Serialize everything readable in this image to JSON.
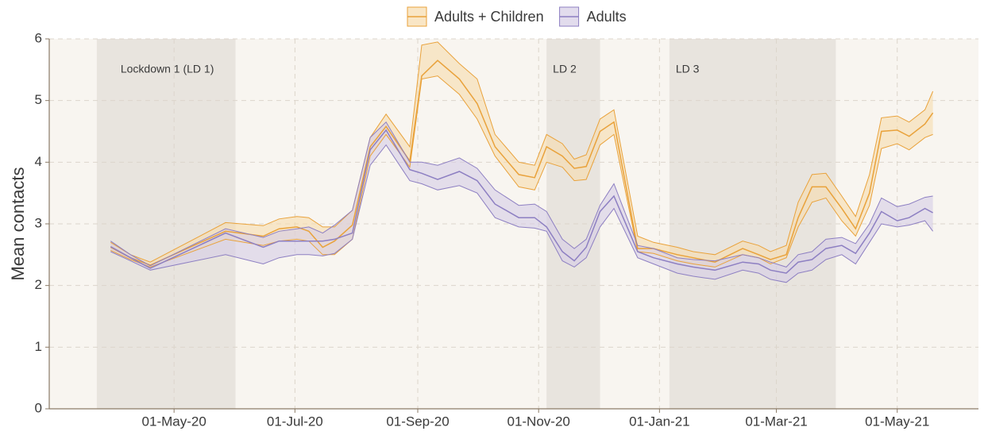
{
  "chart_data": {
    "type": "line",
    "y_label": "Mean contacts",
    "grid": true,
    "legend": "top",
    "xlim": [
      "2020-02-28",
      "2021-06-11"
    ],
    "xticks": [
      {
        "value": "2020-05-01",
        "label": "01-May-20"
      },
      {
        "value": "2020-07-01",
        "label": "01-Jul-20"
      },
      {
        "value": "2020-09-01",
        "label": "01-Sep-20"
      },
      {
        "value": "2020-11-01",
        "label": "01-Nov-20"
      },
      {
        "value": "2021-01-01",
        "label": "01-Jan-21"
      },
      {
        "value": "2021-03-01",
        "label": "01-Mar-21"
      },
      {
        "value": "2021-05-01",
        "label": "01-May-21"
      }
    ],
    "ylim": [
      0,
      6
    ],
    "yticks": [
      0,
      1,
      2,
      3,
      4,
      5,
      6
    ],
    "shaded_regions": [
      {
        "label": "Lockdown 1 (LD 1)",
        "start": "2020-03-23",
        "end": "2020-06-01"
      },
      {
        "label": "LD 2",
        "start": "2020-11-05",
        "end": "2020-12-02"
      },
      {
        "label": "LD 3",
        "start": "2021-01-06",
        "end": "2021-03-31"
      }
    ],
    "x": [
      "2020-03-30",
      "2020-04-09",
      "2020-04-19",
      "2020-05-27",
      "2020-06-15",
      "2020-06-23",
      "2020-07-02",
      "2020-07-08",
      "2020-07-15",
      "2020-07-21",
      "2020-07-30",
      "2020-08-08",
      "2020-08-16",
      "2020-08-28",
      "2020-09-03",
      "2020-09-11",
      "2020-09-22",
      "2020-10-01",
      "2020-10-10",
      "2020-10-22",
      "2020-10-30",
      "2020-11-05",
      "2020-11-13",
      "2020-11-19",
      "2020-11-25",
      "2020-12-02",
      "2020-12-09",
      "2020-12-21",
      "2020-12-29",
      "2021-01-10",
      "2021-01-18",
      "2021-01-29",
      "2021-02-12",
      "2021-02-20",
      "2021-02-26",
      "2021-03-06",
      "2021-03-12",
      "2021-03-19",
      "2021-03-26",
      "2021-04-03",
      "2021-04-10",
      "2021-04-17",
      "2021-04-23",
      "2021-05-01",
      "2021-05-07",
      "2021-05-15",
      "2021-05-19"
    ],
    "series": [
      {
        "name": "Adults + Children",
        "color": "#e9a23b",
        "fill": "#f7dcae",
        "values": [
          2.62,
          2.45,
          2.33,
          2.88,
          2.8,
          2.92,
          2.95,
          2.88,
          2.62,
          2.72,
          2.98,
          4.25,
          4.58,
          4.02,
          5.4,
          5.65,
          5.35,
          4.95,
          4.25,
          3.8,
          3.75,
          4.25,
          4.1,
          3.9,
          3.93,
          4.5,
          4.65,
          2.6,
          2.6,
          2.5,
          2.45,
          2.38,
          2.6,
          2.5,
          2.42,
          2.5,
          3.1,
          3.6,
          3.6,
          3.25,
          2.92,
          3.5,
          4.5,
          4.52,
          4.42,
          4.62,
          4.8
        ],
        "lower": [
          2.57,
          2.42,
          2.3,
          2.75,
          2.65,
          2.72,
          2.75,
          2.72,
          2.5,
          2.5,
          2.75,
          4.1,
          4.45,
          3.92,
          5.35,
          5.4,
          5.1,
          4.7,
          4.1,
          3.6,
          3.55,
          4.0,
          3.92,
          3.7,
          3.72,
          4.28,
          4.45,
          2.55,
          2.52,
          2.4,
          2.35,
          2.3,
          2.5,
          2.45,
          2.35,
          2.45,
          2.95,
          3.35,
          3.42,
          3.05,
          2.8,
          3.3,
          4.22,
          4.3,
          4.2,
          4.4,
          4.45
        ],
        "upper": [
          2.7,
          2.5,
          2.38,
          3.02,
          2.97,
          3.08,
          3.12,
          3.1,
          2.95,
          2.95,
          3.22,
          4.4,
          4.78,
          4.25,
          5.9,
          5.95,
          5.6,
          5.35,
          4.45,
          4.0,
          3.95,
          4.45,
          4.3,
          4.05,
          4.12,
          4.7,
          4.85,
          2.8,
          2.7,
          2.62,
          2.55,
          2.5,
          2.72,
          2.65,
          2.55,
          2.65,
          3.35,
          3.8,
          3.82,
          3.45,
          3.12,
          3.8,
          4.72,
          4.75,
          4.65,
          4.85,
          5.15
        ]
      },
      {
        "name": "Adults",
        "color": "#8d7fc2",
        "fill": "#d5cde6",
        "values": [
          2.63,
          2.45,
          2.28,
          2.85,
          2.62,
          2.72,
          2.72,
          2.72,
          2.72,
          2.75,
          2.85,
          4.2,
          4.52,
          3.88,
          3.82,
          3.72,
          3.85,
          3.7,
          3.32,
          3.1,
          3.1,
          2.95,
          2.55,
          2.4,
          2.62,
          3.2,
          3.45,
          2.55,
          2.45,
          2.35,
          2.3,
          2.25,
          2.38,
          2.35,
          2.25,
          2.2,
          2.38,
          2.42,
          2.6,
          2.65,
          2.52,
          2.85,
          3.2,
          3.05,
          3.1,
          3.25,
          3.18
        ],
        "lower": [
          2.55,
          2.4,
          2.25,
          2.5,
          2.35,
          2.45,
          2.5,
          2.5,
          2.48,
          2.52,
          2.75,
          3.95,
          4.28,
          3.7,
          3.65,
          3.55,
          3.62,
          3.5,
          3.1,
          2.95,
          2.93,
          2.88,
          2.4,
          2.3,
          2.45,
          2.95,
          3.25,
          2.45,
          2.35,
          2.2,
          2.15,
          2.1,
          2.25,
          2.2,
          2.1,
          2.05,
          2.2,
          2.25,
          2.42,
          2.5,
          2.35,
          2.7,
          3.0,
          2.95,
          2.98,
          3.05,
          2.88
        ],
        "upper": [
          2.72,
          2.5,
          2.32,
          2.92,
          2.78,
          2.88,
          2.92,
          2.95,
          2.85,
          2.98,
          3.22,
          4.4,
          4.65,
          4.0,
          4.0,
          3.95,
          4.07,
          3.9,
          3.55,
          3.3,
          3.32,
          3.2,
          2.75,
          2.6,
          2.75,
          3.3,
          3.65,
          2.65,
          2.6,
          2.45,
          2.42,
          2.4,
          2.5,
          2.45,
          2.38,
          2.3,
          2.5,
          2.55,
          2.75,
          2.78,
          2.68,
          3.0,
          3.42,
          3.28,
          3.32,
          3.43,
          3.45
        ]
      }
    ]
  }
}
